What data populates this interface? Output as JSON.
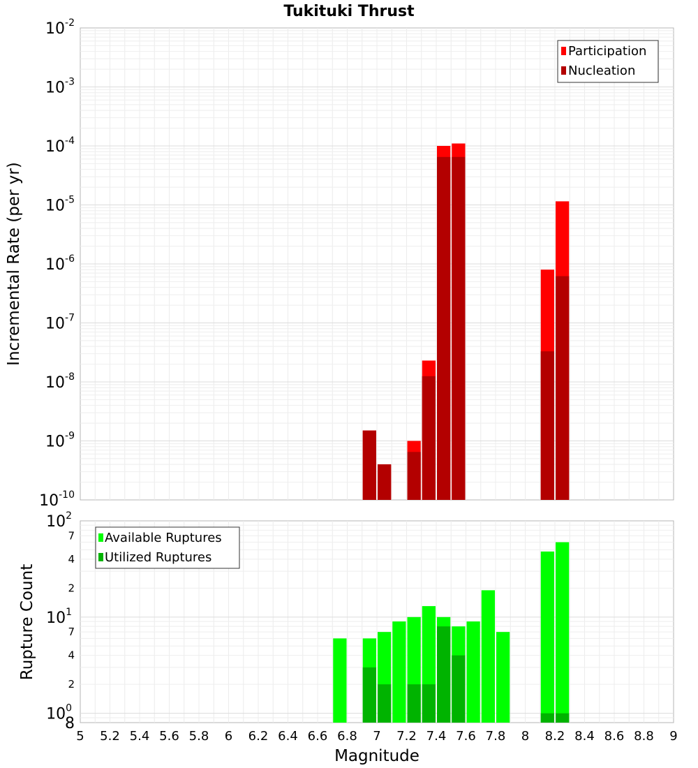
{
  "chart_data": [
    {
      "type": "bar",
      "title": "Tukituki Thrust",
      "xlabel": "",
      "ylabel": "Incremental Rate (per yr)",
      "yscale": "log",
      "ylim": [
        1e-10,
        0.01
      ],
      "xlim": [
        5,
        9
      ],
      "y_ticks": [
        {
          "base": "10",
          "exp": "-10"
        },
        {
          "base": "10",
          "exp": "-9"
        },
        {
          "base": "10",
          "exp": "-8"
        },
        {
          "base": "10",
          "exp": "-7"
        },
        {
          "base": "10",
          "exp": "-6"
        },
        {
          "base": "10",
          "exp": "-5"
        },
        {
          "base": "10",
          "exp": "-4"
        },
        {
          "base": "10",
          "exp": "-3"
        },
        {
          "base": "10",
          "exp": "-2"
        }
      ],
      "legend": "top-right",
      "grid": true,
      "series": [
        {
          "name": "Participation",
          "color": "#ff0000",
          "x": [
            6.95,
            7.05,
            7.25,
            7.35,
            7.45,
            7.55,
            8.15,
            8.25
          ],
          "values": [
            1.5e-09,
            4e-10,
            1e-09,
            2.3e-08,
            0.0001,
            0.00011,
            8e-07,
            1.15e-05
          ]
        },
        {
          "name": "Nucleation",
          "color": "#b30000",
          "x": [
            6.95,
            7.05,
            7.25,
            7.35,
            7.45,
            7.55,
            8.15,
            8.25
          ],
          "values": [
            1.5e-09,
            4e-10,
            6.5e-10,
            1.25e-08,
            6.5e-05,
            6.5e-05,
            3.3e-08,
            6.2e-07
          ]
        }
      ]
    },
    {
      "type": "bar",
      "title": "",
      "xlabel": "Magnitude",
      "ylabel": "Rupture Count",
      "yscale": "log",
      "ylim": [
        0.8,
        100
      ],
      "xlim": [
        5,
        9
      ],
      "x_ticks": [
        "5",
        "5.2",
        "5.4",
        "5.6",
        "5.8",
        "6",
        "6.2",
        "6.4",
        "6.6",
        "6.8",
        "7",
        "7.2",
        "7.4",
        "7.6",
        "7.8",
        "8",
        "8.2",
        "8.4",
        "8.6",
        "8.8",
        "9"
      ],
      "y_ticks": [
        {
          "base": "10",
          "exp": "2"
        },
        {
          "base": "10",
          "exp": "1"
        },
        {
          "base": "10",
          "exp": "0"
        }
      ],
      "y_minor_labels": [
        "7",
        "4",
        "2",
        "7",
        "4",
        "2",
        "8"
      ],
      "legend": "top-left",
      "grid": true,
      "series": [
        {
          "name": "Available Ruptures",
          "color": "#00ff00",
          "x": [
            6.75,
            6.95,
            7.05,
            7.15,
            7.25,
            7.35,
            7.45,
            7.55,
            7.65,
            7.75,
            7.85,
            8.15,
            8.25
          ],
          "values": [
            6,
            6,
            7,
            9,
            10,
            13,
            10,
            8,
            9,
            19,
            7,
            48,
            60
          ]
        },
        {
          "name": "Utilized Ruptures",
          "color": "#00b300",
          "x": [
            6.95,
            7.05,
            7.25,
            7.35,
            7.45,
            7.55,
            8.15,
            8.25
          ],
          "values": [
            3,
            2,
            2,
            2,
            8,
            4,
            1,
            1
          ]
        }
      ]
    }
  ]
}
